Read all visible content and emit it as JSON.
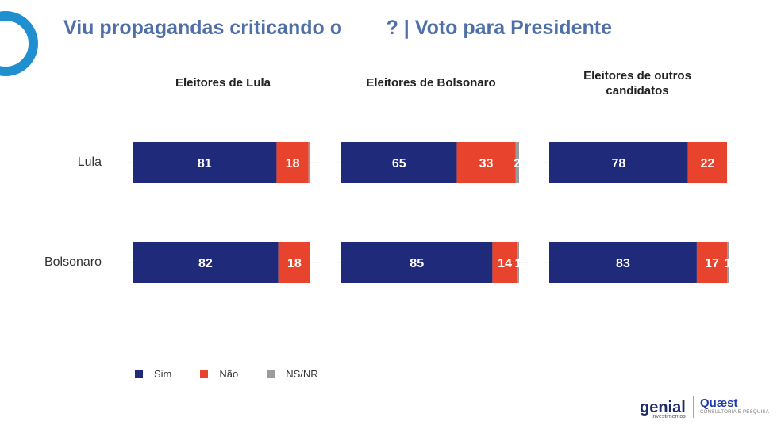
{
  "title": "Viu propagandas criticando o ___ ? | Voto para Presidente",
  "colors": {
    "sim": "#1f2a7a",
    "nao": "#e8432d",
    "nsnr": "#9b9b9b",
    "title": "#4f6fa7"
  },
  "legend": {
    "sim": "Sim",
    "nao": "Não",
    "nsnr": "NS/NR"
  },
  "brands": {
    "genial": "genial",
    "genial_sub": "investimentos",
    "quaest": "Quæst",
    "quaest_sub": "CONSULTORIA E PESQUISA"
  },
  "chart_data": {
    "type": "bar",
    "orientation": "horizontal-stacked-100",
    "title": "Viu propagandas criticando o ___ ? | Voto para Presidente",
    "categories": [
      "Lula",
      "Bolsonaro"
    ],
    "panels": [
      {
        "title": "Eleitores de Lula",
        "series": [
          {
            "name": "Sim",
            "values": [
              81,
              82
            ],
            "labels": [
              "81",
              "82"
            ]
          },
          {
            "name": "Não",
            "values": [
              18,
              18
            ],
            "labels": [
              "18",
              "18"
            ]
          },
          {
            "name": "NS/NR",
            "values": [
              1,
              0
            ],
            "labels": [
              "",
              ""
            ]
          }
        ]
      },
      {
        "title": "Eleitores de Bolsonaro",
        "series": [
          {
            "name": "Sim",
            "values": [
              65,
              85
            ],
            "labels": [
              "65",
              "85"
            ]
          },
          {
            "name": "Não",
            "values": [
              33,
              14
            ],
            "labels": [
              "33",
              "14"
            ]
          },
          {
            "name": "NS/NR",
            "values": [
              2,
              1
            ],
            "labels": [
              "2",
              "1"
            ]
          }
        ]
      },
      {
        "title": "Eleitores de outros candidatos",
        "series": [
          {
            "name": "Sim",
            "values": [
              78,
              83
            ],
            "labels": [
              "78",
              "83"
            ]
          },
          {
            "name": "Não",
            "values": [
              22,
              17
            ],
            "labels": [
              "22",
              "17"
            ]
          },
          {
            "name": "NS/NR",
            "values": [
              0,
              1
            ],
            "labels": [
              "",
              "1"
            ]
          }
        ]
      }
    ],
    "xlim": [
      0,
      100
    ],
    "legend_position": "bottom-left"
  }
}
